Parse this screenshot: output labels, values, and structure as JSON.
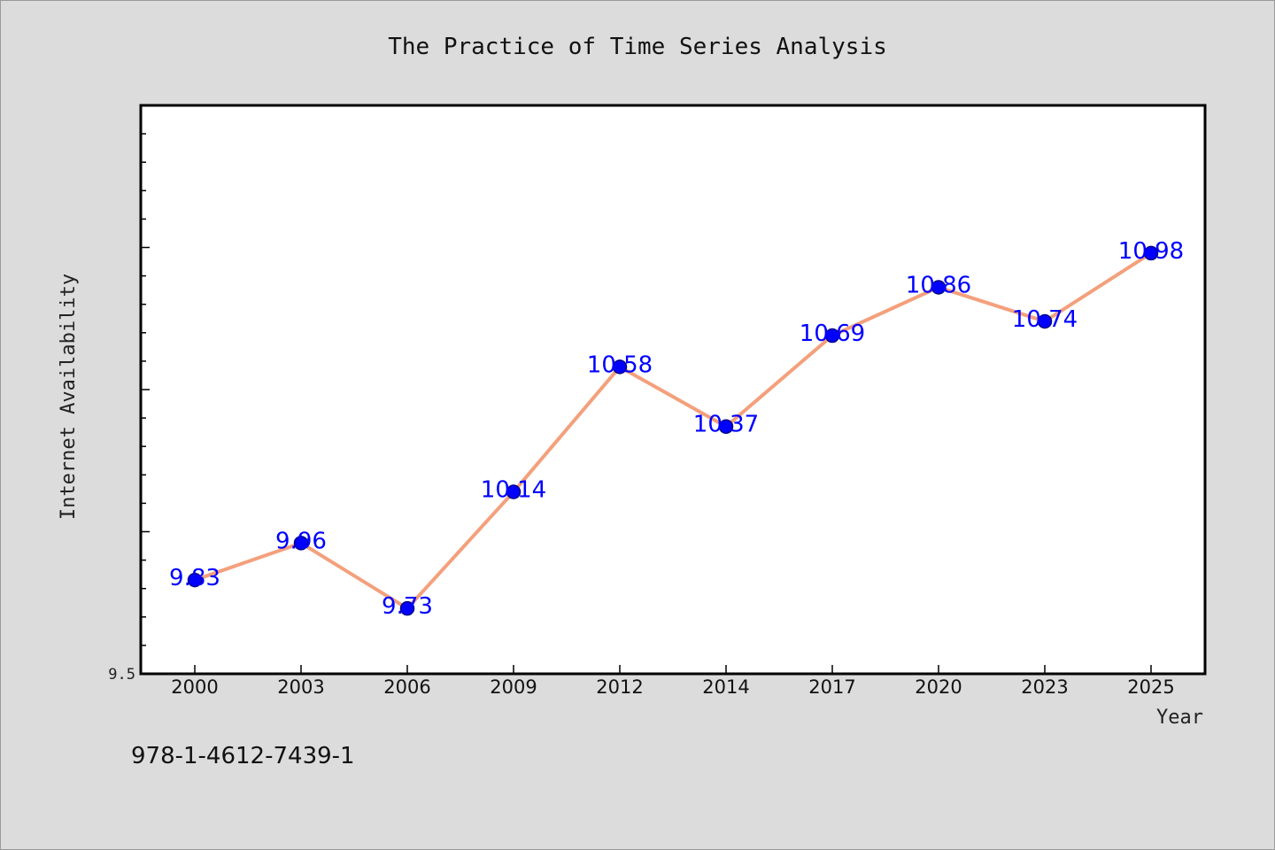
{
  "chart_data": {
    "type": "line",
    "title": "The Practice of Time Series Analysis",
    "xlabel": "Year",
    "ylabel": "Internet Availability",
    "categories": [
      "2000",
      "2003",
      "2006",
      "2009",
      "2012",
      "2014",
      "2017",
      "2020",
      "2023",
      "2025"
    ],
    "series": [
      {
        "values": [
          9.83,
          9.96,
          9.73,
          10.14,
          10.58,
          10.37,
          10.69,
          10.86,
          10.74,
          10.98
        ],
        "line_color": "#f4a07c",
        "marker_color": "#0000ff"
      }
    ],
    "data_labels": [
      "9.83",
      "9.96",
      "9.73",
      "10.14",
      "10.58",
      "10.37",
      "10.69",
      "10.86",
      "10.74",
      "10.98"
    ],
    "ylim": [
      9.5,
      11.5
    ],
    "y_tick_labels": [
      "9.5"
    ],
    "grid": false,
    "legend": "none"
  },
  "footer": {
    "isbn": "978-1-4612-7439-1"
  }
}
